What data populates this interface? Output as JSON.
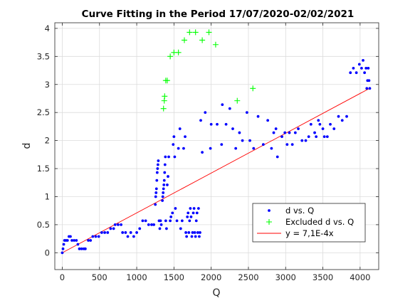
{
  "chart_data": {
    "type": "scatter",
    "title": "Curve Fitting in the Period 17/07/2020-02/02/2021",
    "xlabel": "Q",
    "ylabel": "d",
    "xlim": [
      -100,
      4250
    ],
    "ylim": [
      -0.3,
      4.1
    ],
    "xticks": [
      0,
      500,
      1000,
      1500,
      2000,
      2500,
      3000,
      3500,
      4000
    ],
    "yticks": [
      0,
      0.5,
      1,
      1.5,
      2,
      2.5,
      3,
      3.5,
      4
    ],
    "xtick_labels": [
      "0",
      "500",
      "1000",
      "1500",
      "2000",
      "2500",
      "3000",
      "3500",
      "4000"
    ],
    "ytick_labels": [
      "0",
      "0.5",
      "1",
      "1.5",
      "2",
      "2.5",
      "3",
      "3.5",
      "4"
    ],
    "grid": true,
    "legend_position": "lower-right",
    "series": [
      {
        "name": "d vs. Q",
        "marker": "dot",
        "color": "#0000ff",
        "points": [
          [
            0,
            0
          ],
          [
            10,
            0.07
          ],
          [
            20,
            0.15
          ],
          [
            30,
            0.22
          ],
          [
            50,
            0.22
          ],
          [
            70,
            0.22
          ],
          [
            90,
            0.29
          ],
          [
            110,
            0.29
          ],
          [
            130,
            0.22
          ],
          [
            160,
            0.22
          ],
          [
            190,
            0.22
          ],
          [
            210,
            0.15
          ],
          [
            230,
            0.07
          ],
          [
            260,
            0.07
          ],
          [
            290,
            0.07
          ],
          [
            310,
            0.07
          ],
          [
            350,
            0.22
          ],
          [
            380,
            0.22
          ],
          [
            410,
            0.29
          ],
          [
            450,
            0.29
          ],
          [
            490,
            0.29
          ],
          [
            530,
            0.36
          ],
          [
            570,
            0.36
          ],
          [
            610,
            0.36
          ],
          [
            650,
            0.43
          ],
          [
            690,
            0.43
          ],
          [
            710,
            0.5
          ],
          [
            750,
            0.5
          ],
          [
            790,
            0.5
          ],
          [
            810,
            0.36
          ],
          [
            850,
            0.36
          ],
          [
            880,
            0.29
          ],
          [
            920,
            0.36
          ],
          [
            960,
            0.29
          ],
          [
            1000,
            0.36
          ],
          [
            1040,
            0.43
          ],
          [
            1080,
            0.57
          ],
          [
            1120,
            0.57
          ],
          [
            1160,
            0.5
          ],
          [
            1200,
            0.5
          ],
          [
            1230,
            0.5
          ],
          [
            1250,
            0.86
          ],
          [
            1255,
            1.0
          ],
          [
            1260,
            1.07
          ],
          [
            1265,
            1.14
          ],
          [
            1270,
            1.29
          ],
          [
            1275,
            1.43
          ],
          [
            1280,
            1.5
          ],
          [
            1285,
            1.57
          ],
          [
            1290,
            1.64
          ],
          [
            1300,
            0.57
          ],
          [
            1310,
            0.43
          ],
          [
            1320,
            0.57
          ],
          [
            1330,
            0.5
          ],
          [
            1345,
            0.93
          ],
          [
            1350,
            1.0
          ],
          [
            1355,
            1.07
          ],
          [
            1360,
            1.14
          ],
          [
            1365,
            1.21
          ],
          [
            1370,
            1.29
          ],
          [
            1375,
            1.43
          ],
          [
            1380,
            1.57
          ],
          [
            1385,
            1.71
          ],
          [
            1390,
            0.57
          ],
          [
            1400,
            0.43
          ],
          [
            1410,
            1.21
          ],
          [
            1420,
            1.36
          ],
          [
            1430,
            1.71
          ],
          [
            1450,
            0.57
          ],
          [
            1460,
            0.64
          ],
          [
            1480,
            0.71
          ],
          [
            1490,
            1.93
          ],
          [
            1500,
            2.07
          ],
          [
            1510,
            1.71
          ],
          [
            1520,
            0.79
          ],
          [
            1540,
            0.57
          ],
          [
            1560,
            1.86
          ],
          [
            1580,
            2.21
          ],
          [
            1590,
            0.43
          ],
          [
            1610,
            0.57
          ],
          [
            1630,
            1.86
          ],
          [
            1650,
            2.07
          ],
          [
            1660,
            0.36
          ],
          [
            1670,
            0.29
          ],
          [
            1680,
            0.64
          ],
          [
            1690,
            0.71
          ],
          [
            1700,
            0.36
          ],
          [
            1710,
            0.57
          ],
          [
            1720,
            0.79
          ],
          [
            1730,
            0.64
          ],
          [
            1740,
            0.29
          ],
          [
            1750,
            0.36
          ],
          [
            1760,
            0.71
          ],
          [
            1770,
            0.79
          ],
          [
            1780,
            0.36
          ],
          [
            1790,
            0.29
          ],
          [
            1800,
            0.57
          ],
          [
            1810,
            0.71
          ],
          [
            1820,
            0.36
          ],
          [
            1830,
            0.79
          ],
          [
            1840,
            0.29
          ],
          [
            1850,
            0.36
          ],
          [
            1860,
            2.36
          ],
          [
            1880,
            1.79
          ],
          [
            1920,
            2.5
          ],
          [
            1990,
            1.86
          ],
          [
            2000,
            2.29
          ],
          [
            2080,
            2.29
          ],
          [
            2140,
            1.93
          ],
          [
            2150,
            2.64
          ],
          [
            2200,
            2.29
          ],
          [
            2250,
            2.57
          ],
          [
            2290,
            2.21
          ],
          [
            2330,
            1.86
          ],
          [
            2380,
            2.14
          ],
          [
            2420,
            2.0
          ],
          [
            2480,
            2.5
          ],
          [
            2520,
            2.0
          ],
          [
            2570,
            1.86
          ],
          [
            2630,
            2.43
          ],
          [
            2700,
            1.93
          ],
          [
            2760,
            2.36
          ],
          [
            2810,
            1.86
          ],
          [
            2840,
            2.14
          ],
          [
            2870,
            2.21
          ],
          [
            2890,
            1.71
          ],
          [
            2950,
            2.07
          ],
          [
            2990,
            2.14
          ],
          [
            3020,
            1.93
          ],
          [
            3050,
            2.14
          ],
          [
            3090,
            1.93
          ],
          [
            3130,
            2.14
          ],
          [
            3170,
            2.21
          ],
          [
            3220,
            2.0
          ],
          [
            3270,
            2.0
          ],
          [
            3310,
            2.07
          ],
          [
            3340,
            2.29
          ],
          [
            3390,
            2.14
          ],
          [
            3410,
            2.07
          ],
          [
            3440,
            2.36
          ],
          [
            3460,
            2.29
          ],
          [
            3500,
            2.21
          ],
          [
            3520,
            2.07
          ],
          [
            3560,
            2.07
          ],
          [
            3600,
            2.29
          ],
          [
            3650,
            2.21
          ],
          [
            3710,
            2.43
          ],
          [
            3760,
            2.36
          ],
          [
            3820,
            2.43
          ],
          [
            3870,
            3.21
          ],
          [
            3910,
            3.29
          ],
          [
            3950,
            3.21
          ],
          [
            3990,
            3.36
          ],
          [
            4020,
            3.29
          ],
          [
            4040,
            3.43
          ],
          [
            4060,
            3.21
          ],
          [
            4080,
            3.29
          ],
          [
            4090,
            2.93
          ],
          [
            4100,
            3.07
          ],
          [
            4110,
            3.29
          ],
          [
            4120,
            3.07
          ],
          [
            4130,
            2.93
          ]
        ]
      },
      {
        "name": "Excluded d vs. Q",
        "marker": "plus",
        "color": "#00ff00",
        "points": [
          [
            1360,
            2.57
          ],
          [
            1370,
            2.71
          ],
          [
            1375,
            2.79
          ],
          [
            1390,
            3.07
          ],
          [
            1410,
            3.07
          ],
          [
            1450,
            3.5
          ],
          [
            1500,
            3.57
          ],
          [
            1560,
            3.57
          ],
          [
            1640,
            3.79
          ],
          [
            1710,
            3.93
          ],
          [
            1790,
            3.93
          ],
          [
            1880,
            3.79
          ],
          [
            1970,
            3.93
          ],
          [
            2060,
            3.71
          ],
          [
            2350,
            2.71
          ],
          [
            2560,
            2.93
          ]
        ]
      },
      {
        "name": "y = 7,1E-4x",
        "marker": "line",
        "color": "#ff0000",
        "slope": 0.00071,
        "x_range": [
          0,
          4130
        ]
      }
    ]
  }
}
